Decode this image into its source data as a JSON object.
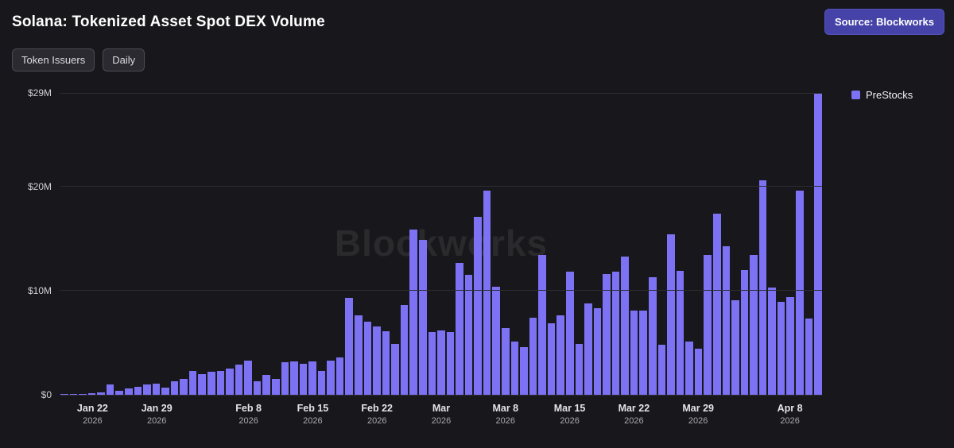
{
  "header": {
    "title": "Solana: Tokenized Asset Spot DEX Volume",
    "source_label": "Source: Blockworks"
  },
  "filters": {
    "token_issuers": "Token Issuers",
    "daily": "Daily"
  },
  "watermark": "Blockworks",
  "colors": {
    "bar": "#7c72f3",
    "source_button": "#4643a8",
    "background": "#18181c"
  },
  "chart_data": {
    "type": "bar",
    "title": "Solana: Tokenized Asset Spot DEX Volume",
    "unit": "$M",
    "grid": true,
    "legend_position": "top-right",
    "ylim": [
      0,
      29
    ],
    "yticks": [
      {
        "value": 0,
        "label": "$0"
      },
      {
        "value": 10,
        "label": "$10M"
      },
      {
        "value": 20,
        "label": "$20M"
      },
      {
        "value": 29,
        "label": "$29M"
      }
    ],
    "xticks": [
      {
        "index": 3,
        "label": "Jan 22",
        "year": "2026"
      },
      {
        "index": 10,
        "label": "Jan 29",
        "year": "2026"
      },
      {
        "index": 20,
        "label": "Feb 8",
        "year": "2026"
      },
      {
        "index": 27,
        "label": "Feb 15",
        "year": "2026"
      },
      {
        "index": 34,
        "label": "Feb 22",
        "year": "2026"
      },
      {
        "index": 41,
        "label": "Mar",
        "year": "2026"
      },
      {
        "index": 48,
        "label": "Mar 8",
        "year": "2026"
      },
      {
        "index": 55,
        "label": "Mar 15",
        "year": "2026"
      },
      {
        "index": 62,
        "label": "Mar 22",
        "year": "2026"
      },
      {
        "index": 69,
        "label": "Mar 29",
        "year": "2026"
      },
      {
        "index": 79,
        "label": "Apr 8",
        "year": "2026"
      }
    ],
    "x": [
      "Jan 19",
      "Jan 20",
      "Jan 21",
      "Jan 22",
      "Jan 23",
      "Jan 24",
      "Jan 25",
      "Jan 26",
      "Jan 27",
      "Jan 28",
      "Jan 29",
      "Jan 30",
      "Jan 31",
      "Feb 1",
      "Feb 2",
      "Feb 3",
      "Feb 4",
      "Feb 5",
      "Feb 6",
      "Feb 7",
      "Feb 8",
      "Feb 9",
      "Feb 10",
      "Feb 11",
      "Feb 12",
      "Feb 13",
      "Feb 14",
      "Feb 15",
      "Feb 16",
      "Feb 17",
      "Feb 18",
      "Feb 19",
      "Feb 20",
      "Feb 21",
      "Feb 22",
      "Feb 23",
      "Feb 24",
      "Feb 25",
      "Feb 26",
      "Feb 27",
      "Feb 28",
      "Mar 1",
      "Mar 2",
      "Mar 3",
      "Mar 4",
      "Mar 5",
      "Mar 6",
      "Mar 7",
      "Mar 8",
      "Mar 9",
      "Mar 10",
      "Mar 11",
      "Mar 12",
      "Mar 13",
      "Mar 14",
      "Mar 15",
      "Mar 16",
      "Mar 17",
      "Mar 18",
      "Mar 19",
      "Mar 20",
      "Mar 21",
      "Mar 22",
      "Mar 23",
      "Mar 24",
      "Mar 25",
      "Mar 26",
      "Mar 27",
      "Mar 28",
      "Mar 29",
      "Mar 30",
      "Mar 31",
      "Apr 1",
      "Apr 2",
      "Apr 3",
      "Apr 4",
      "Apr 5",
      "Apr 6",
      "Apr 7",
      "Apr 8",
      "Apr 9",
      "Apr 10",
      "Apr 11"
    ],
    "series": [
      {
        "name": "PreStocks",
        "color": "#7c72f3",
        "values": [
          0.05,
          0.08,
          0.1,
          0.15,
          0.2,
          1.0,
          0.4,
          0.6,
          0.8,
          1.0,
          1.1,
          0.7,
          1.3,
          1.5,
          2.3,
          2.0,
          2.2,
          2.3,
          2.5,
          2.9,
          3.3,
          1.3,
          1.9,
          1.5,
          3.1,
          3.2,
          3.0,
          3.2,
          2.3,
          3.3,
          3.6,
          9.3,
          7.6,
          7.0,
          6.6,
          6.1,
          4.9,
          8.6,
          15.9,
          14.9,
          6.0,
          6.2,
          6.0,
          12.7,
          11.5,
          17.1,
          19.6,
          10.4,
          6.4,
          5.1,
          4.6,
          7.4,
          13.4,
          6.9,
          7.6,
          11.8,
          4.9,
          8.8,
          8.3,
          11.6,
          11.8,
          13.3,
          8.1,
          8.1,
          11.3,
          4.8,
          15.4,
          11.9,
          5.1,
          4.4,
          13.4,
          17.4,
          14.3,
          9.1,
          12.0,
          13.4,
          20.6,
          10.3,
          8.9,
          9.4,
          19.6,
          7.3,
          29.0
        ]
      }
    ]
  }
}
